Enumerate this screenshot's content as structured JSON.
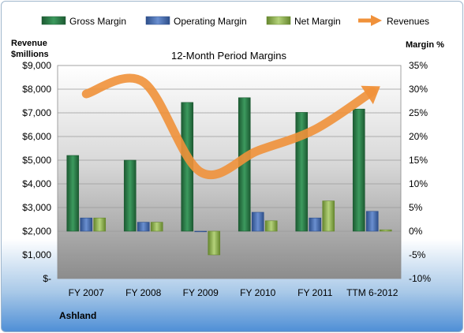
{
  "chart_data": {
    "type": "bar",
    "title": "12-Month Period Margins",
    "left_axis_label_line1": "Revenue",
    "left_axis_label_line2": "$millions",
    "right_axis_label": "Margin %",
    "company": "Ashland",
    "categories": [
      "FY 2007",
      "FY 2008",
      "FY 2009",
      "FY 2010",
      "FY 2011",
      "TTM 6-2012"
    ],
    "left_axis": {
      "min": 0,
      "max": 9000,
      "ticks": [
        "$-",
        "$1,000",
        "$2,000",
        "$3,000",
        "$4,000",
        "$5,000",
        "$6,000",
        "$7,000",
        "$8,000",
        "$9,000"
      ]
    },
    "right_axis": {
      "min": -10,
      "max": 35,
      "ticks": [
        "-10%",
        "-5%",
        "0%",
        "5%",
        "10%",
        "15%",
        "20%",
        "25%",
        "30%",
        "35%"
      ]
    },
    "series": [
      {
        "name": "Gross Margin",
        "type": "bar",
        "axis": "right",
        "values": [
          16.0,
          15.0,
          27.2,
          28.2,
          25.1,
          25.8
        ],
        "color": "#2e7d4a"
      },
      {
        "name": "Operating Margin",
        "type": "bar",
        "axis": "right",
        "values": [
          2.8,
          1.9,
          0.0,
          4.0,
          2.8,
          4.2
        ],
        "color": "#4a6fb0"
      },
      {
        "name": "Net Margin",
        "type": "bar",
        "axis": "right",
        "values": [
          2.8,
          1.9,
          -5.0,
          2.2,
          6.4,
          0.3
        ],
        "color": "#8fb24f"
      },
      {
        "name": "Revenues",
        "type": "line",
        "axis": "left",
        "values": [
          7800,
          8300,
          4500,
          5400,
          6300,
          7900
        ],
        "color": "#f0913a"
      }
    ],
    "grid": true,
    "legend": "top"
  }
}
